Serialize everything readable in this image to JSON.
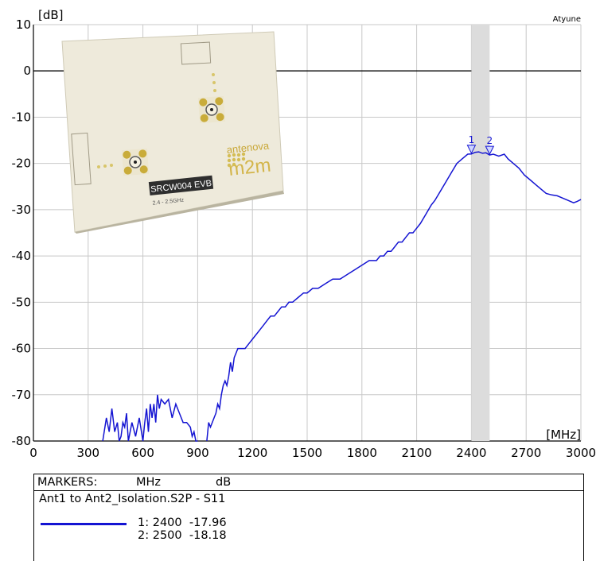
{
  "app_label": "Atyune",
  "chart_data": {
    "type": "line",
    "title": "",
    "xlabel": "[MHz]",
    "ylabel": "[dB]",
    "xlim": [
      0,
      3000
    ],
    "ylim": [
      -80,
      10
    ],
    "xticks": [
      0,
      300,
      600,
      900,
      1200,
      1500,
      1800,
      2100,
      2400,
      2700,
      3000
    ],
    "yticks": [
      10,
      0,
      -10,
      -20,
      -30,
      -40,
      -50,
      -60,
      -70,
      -80
    ],
    "grid": true,
    "highlight_band": [
      2400,
      2500
    ],
    "series": [
      {
        "name": "Ant1 to Ant2_Isolation.S2P - S11",
        "color": "#1414d2",
        "x": [
          380,
          400,
          415,
          430,
          445,
          460,
          470,
          480,
          490,
          500,
          510,
          520,
          540,
          560,
          580,
          600,
          610,
          620,
          630,
          640,
          650,
          660,
          670,
          680,
          690,
          700,
          720,
          740,
          760,
          780,
          800,
          820,
          840,
          860,
          870,
          880,
          890,
          900
        ],
        "y": [
          -80,
          -75,
          -78,
          -73,
          -78,
          -76,
          -80,
          -79,
          -76,
          -77,
          -74,
          -80,
          -76,
          -79,
          -75,
          -80,
          -76,
          -73,
          -78,
          -72,
          -75,
          -72,
          -76,
          -70,
          -73,
          -71,
          -72,
          -71,
          -75,
          -72,
          -74,
          -76,
          -76,
          -77,
          -79,
          -78,
          -80,
          -80
        ],
        "x2": [
          950,
          960,
          970,
          990,
          1000,
          1010,
          1020,
          1030,
          1040,
          1050,
          1060,
          1070,
          1080,
          1090,
          1100,
          1120,
          1140,
          1160,
          1180,
          1200,
          1220,
          1240,
          1260,
          1280,
          1300,
          1320,
          1340,
          1360,
          1380,
          1400,
          1420,
          1450,
          1480,
          1500,
          1530,
          1560,
          1600,
          1640,
          1680,
          1720,
          1760,
          1800,
          1840,
          1880,
          1900,
          1920,
          1940,
          1960,
          1980,
          2000,
          2020,
          2040,
          2060,
          2080,
          2100,
          2120,
          2150,
          2180,
          2200,
          2230,
          2260,
          2290,
          2320,
          2350,
          2380,
          2400,
          2420,
          2440,
          2460,
          2480,
          2500,
          2520,
          2550,
          2580,
          2600,
          2630,
          2660,
          2690,
          2720,
          2750,
          2780,
          2810,
          2840,
          2870,
          2900,
          2930,
          2960,
          2980,
          3000
        ],
        "y2": [
          -80,
          -76,
          -77,
          -75,
          -74,
          -72,
          -73,
          -70,
          -68,
          -67,
          -68,
          -66,
          -63,
          -65,
          -62,
          -60,
          -60,
          -60,
          -59,
          -58,
          -57,
          -56,
          -55,
          -54,
          -53,
          -53,
          -52,
          -51,
          -51,
          -50,
          -50,
          -49,
          -48,
          -48,
          -47,
          -47,
          -46,
          -45,
          -45,
          -44,
          -43,
          -42,
          -41,
          -41,
          -40,
          -40,
          -39,
          -39,
          -38,
          -37,
          -37,
          -36,
          -35,
          -35,
          -34,
          -33,
          -31,
          -29,
          -28,
          -26,
          -24,
          -22,
          -20,
          -19,
          -18,
          -17.96,
          -17.6,
          -17.5,
          -17.8,
          -17.7,
          -18.18,
          -18.0,
          -18.4,
          -18.0,
          -19.0,
          -20,
          -21,
          -22.5,
          -23.5,
          -24.5,
          -25.5,
          -26.5,
          -26.8,
          -27.0,
          -27.5,
          -28.0,
          -28.5,
          -28.2,
          -27.8
        ]
      }
    ],
    "markers": [
      {
        "id": "1",
        "x": 2400,
        "y": -17.96
      },
      {
        "id": "2",
        "x": 2500,
        "y": -18.18
      }
    ]
  },
  "pcb_image": {
    "board_label": "SRCW004 EVB",
    "freq_label": "2.4 - 2.5GHz",
    "brand_top": "antenova",
    "brand_bottom": "m2m"
  },
  "markers_panel": {
    "title": "MARKERS:",
    "col_x": "MHz",
    "col_y": "dB",
    "file": "Ant1 to Ant2_Isolation.S2P - S11",
    "rows": [
      {
        "id": "1:",
        "x": "2400",
        "y": "-17.96"
      },
      {
        "id": "2:",
        "x": "2500",
        "y": "-18.18"
      }
    ]
  }
}
